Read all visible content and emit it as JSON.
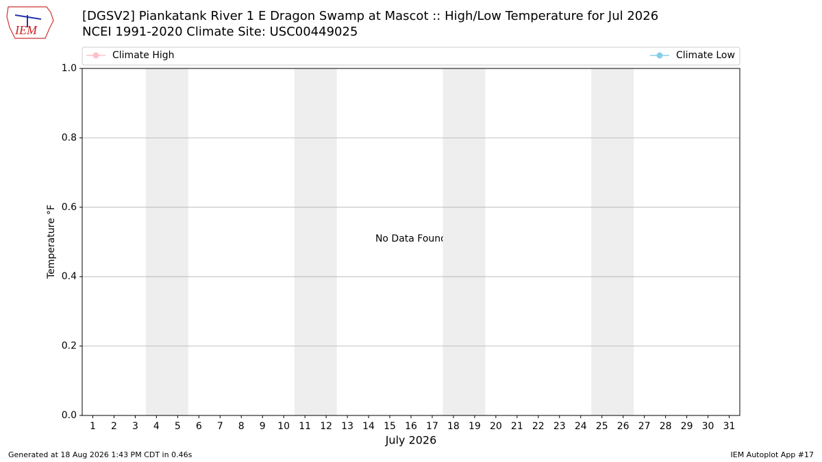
{
  "chart_data": {
    "type": "line",
    "title": "[DGSV2] Piankatank River 1 E Dragon Swamp at Mascot :: High/Low Temperature for Jul 2026",
    "subtitle": "NCEI 1991-2020 Climate Site: USC00449025",
    "logo_text": "IEM",
    "x": [
      1,
      2,
      3,
      4,
      5,
      6,
      7,
      8,
      9,
      10,
      11,
      12,
      13,
      14,
      15,
      16,
      17,
      18,
      19,
      20,
      21,
      22,
      23,
      24,
      25,
      26,
      27,
      28,
      29,
      30,
      31
    ],
    "series": [
      {
        "name": "Climate High",
        "color": "#ffc0cb",
        "values": [
          null,
          null,
          null,
          null,
          null,
          null,
          null,
          null,
          null,
          null,
          null,
          null,
          null,
          null,
          null,
          null,
          null,
          null,
          null,
          null,
          null,
          null,
          null,
          null,
          null,
          null,
          null,
          null,
          null,
          null,
          null
        ]
      },
      {
        "name": "Climate Low",
        "color": "#87ceeb",
        "values": [
          null,
          null,
          null,
          null,
          null,
          null,
          null,
          null,
          null,
          null,
          null,
          null,
          null,
          null,
          null,
          null,
          null,
          null,
          null,
          null,
          null,
          null,
          null,
          null,
          null,
          null,
          null,
          null,
          null,
          null,
          null
        ]
      }
    ],
    "weekend_bands": [
      [
        3.5,
        5.5
      ],
      [
        10.5,
        12.5
      ],
      [
        17.5,
        19.5
      ],
      [
        24.5,
        26.5
      ]
    ],
    "band_color": "#eeeeee",
    "xlim": [
      0.5,
      31.5
    ],
    "xticks": [
      1,
      2,
      3,
      4,
      5,
      6,
      7,
      8,
      9,
      10,
      11,
      12,
      13,
      14,
      15,
      16,
      17,
      18,
      19,
      20,
      21,
      22,
      23,
      24,
      25,
      26,
      27,
      28,
      29,
      30,
      31
    ],
    "ylim": [
      0,
      1
    ],
    "yticks": [
      {
        "value": 0,
        "label": "0.0"
      },
      {
        "value": 0.2,
        "label": "0.2"
      },
      {
        "value": 0.4,
        "label": "0.4"
      },
      {
        "value": 0.6,
        "label": "0.6"
      },
      {
        "value": 0.8,
        "label": "0.8"
      },
      {
        "value": 1,
        "label": "1.0"
      }
    ],
    "grid": true,
    "xlabel": "July 2026",
    "ylabel": "Temperature °F",
    "annotation": "No Data Found",
    "footer_left": "Generated at 18 Aug 2026 1:43 PM CDT in 0.46s",
    "footer_right": "IEM Autoplot App #17"
  }
}
